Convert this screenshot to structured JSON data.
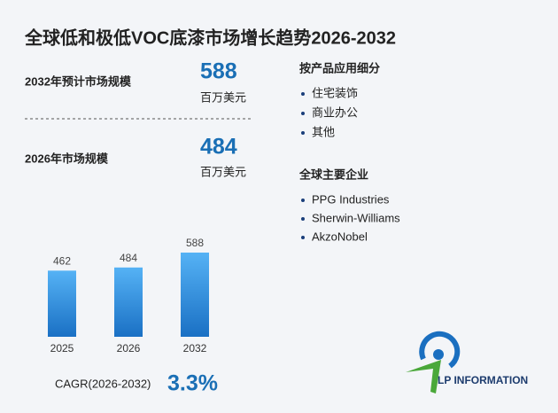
{
  "title": "全球低和极低VOC底漆市场增长趋势2026-2032",
  "stats": [
    {
      "label": "2032年预计市场规模",
      "value": 588,
      "unit": "百万美元"
    },
    {
      "label": "2026年市场规模",
      "value": 484,
      "unit": "百万美元"
    }
  ],
  "segments": {
    "title": "按产品应用细分",
    "items": [
      "住宅装饰",
      "商业办公",
      "其他"
    ]
  },
  "companies": {
    "title": "全球主要企业",
    "items": [
      "PPG Industries",
      "Sherwin-Williams",
      "AkzoNobel"
    ]
  },
  "cagr": {
    "label": "CAGR(2026-2032)",
    "value": "3.3%"
  },
  "logo": "LP INFORMATION",
  "chart_data": {
    "type": "bar",
    "categories": [
      "2025",
      "2026",
      "2032"
    ],
    "values": [
      462,
      484,
      588
    ],
    "color": "#2a86d6"
  }
}
